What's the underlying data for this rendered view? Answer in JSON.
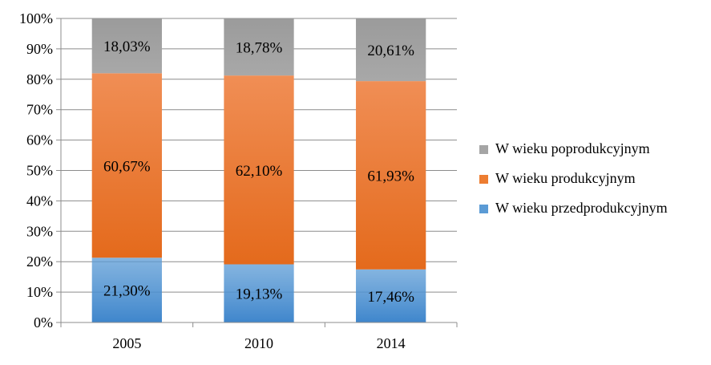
{
  "chart_data": {
    "type": "bar",
    "stacked": true,
    "categories": [
      "2005",
      "2010",
      "2014"
    ],
    "series": [
      {
        "name": "W wieku przedprodukcyjnym",
        "values": [
          21.3,
          19.13,
          17.46
        ],
        "labels": [
          "21,30%",
          "19,13%",
          "17,46%"
        ],
        "color": "#5b9bd5"
      },
      {
        "name": "W wieku produkcyjnym",
        "values": [
          60.67,
          62.1,
          61.93
        ],
        "labels": [
          "60,67%",
          "62,10%",
          "61,93%"
        ],
        "color": "#ed7d31"
      },
      {
        "name": "W wieku poprodukcyjnym",
        "values": [
          18.03,
          18.78,
          20.61
        ],
        "labels": [
          "18,03%",
          "18,78%",
          "20,61%"
        ],
        "color": "#a5a5a5"
      }
    ],
    "ylim": [
      0,
      100
    ],
    "yticks": [
      "0%",
      "10%",
      "20%",
      "30%",
      "40%",
      "50%",
      "60%",
      "70%",
      "80%",
      "90%",
      "100%"
    ],
    "grid": true,
    "legend_position": "right"
  }
}
